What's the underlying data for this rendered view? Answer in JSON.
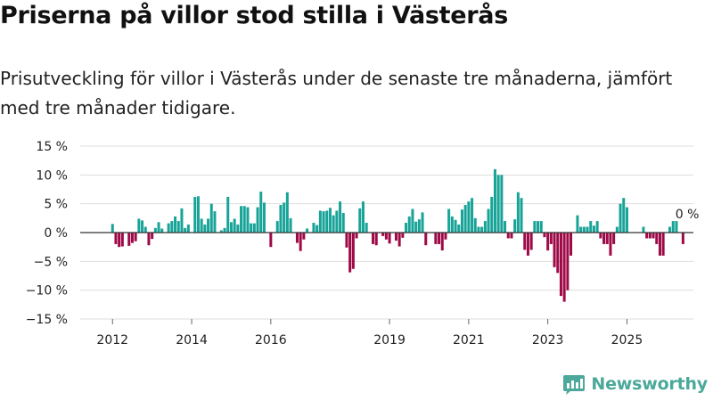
{
  "header": {
    "title": "Priserna på villor stod stilla i Västerås",
    "subtitle": "Prisutveckling för villor i Västerås under de senaste tre månaderna, jämfört med tre månader tidigare."
  },
  "brand": {
    "name": "Newsworthy",
    "icon": "bar-chart-logo-icon"
  },
  "colors": {
    "positive": "#17a398",
    "negative": "#9e0a47",
    "grid": "#dddddd",
    "zero_line": "#333333",
    "brand": "#4ba89a"
  },
  "chart_data": {
    "type": "bar",
    "title": "Priserna på villor stod stilla i Västerås",
    "xlabel": "",
    "ylabel": "",
    "ylim": [
      -15,
      15
    ],
    "yticks": [
      15,
      10,
      5,
      0,
      -5,
      -10,
      -15
    ],
    "ytick_labels": [
      "15 %",
      "10 %",
      "5 %",
      "0 %",
      "−5 %",
      "−10 %",
      "−15 %"
    ],
    "x_start_month": "2011-11",
    "xtick_labels": [
      {
        "label": "2012",
        "month": "2012-01"
      },
      {
        "label": "2014",
        "month": "2014-01"
      },
      {
        "label": "2016",
        "month": "2016-01"
      },
      {
        "label": "2019",
        "month": "2019-01"
      },
      {
        "label": "2021",
        "month": "2021-01"
      },
      {
        "label": "2023",
        "month": "2023-01"
      },
      {
        "label": "2025",
        "month": "2025-01"
      }
    ],
    "annotation": {
      "text": "0 %",
      "index": 174,
      "value": 0
    },
    "grid": true,
    "values": [
      0,
      0,
      1.5,
      -2,
      -2.5,
      -2.4,
      0,
      -2.3,
      -1.8,
      -1.5,
      2.4,
      2.1,
      1,
      -2.2,
      -1.1,
      0.8,
      1.8,
      0.7,
      0,
      1.6,
      2,
      2.8,
      2,
      4.2,
      0.8,
      1.4,
      0,
      6.2,
      6.3,
      2.4,
      1.4,
      2.4,
      5,
      3.7,
      0,
      0.4,
      0.8,
      6.2,
      1.8,
      2.4,
      1.4,
      4.6,
      4.6,
      4.4,
      1.6,
      1.6,
      4.4,
      7.1,
      5.2,
      0,
      -2.5,
      0,
      2,
      4.8,
      5.2,
      7,
      2.5,
      0,
      -1.8,
      -3.2,
      -1.2,
      0.7,
      0,
      1.7,
      1.3,
      3.8,
      3.7,
      3.8,
      4.3,
      3,
      3.8,
      5.4,
      3.4,
      -2.6,
      -6.9,
      -6.3,
      -1,
      4.2,
      5.4,
      1.7,
      0,
      -2,
      -2.2,
      0,
      -0.6,
      -1.2,
      -1.9,
      0,
      -1.4,
      -2.4,
      -0.9,
      1.7,
      2.8,
      4.1,
      1.9,
      2.3,
      3.5,
      -2.2,
      0,
      0,
      -2,
      -2,
      -3.1,
      -1.2,
      4.1,
      2.8,
      2.2,
      1.4,
      4,
      4.8,
      5.4,
      6,
      2.5,
      1,
      1,
      2,
      4.1,
      6.2,
      11,
      10,
      10,
      2,
      -1,
      -1,
      2.3,
      7,
      6,
      -3,
      -4,
      -3,
      2,
      2,
      2,
      -0.8,
      -3.1,
      -2,
      -6,
      -7,
      -11,
      -12,
      -10,
      -4,
      0,
      3,
      1,
      1,
      1,
      2,
      1.2,
      2,
      -1,
      -2,
      -2,
      -4,
      -2,
      1,
      5,
      6,
      4.4,
      0,
      0,
      0,
      0,
      1,
      -1,
      -1,
      -1,
      -2,
      -4,
      -4,
      0,
      1,
      2,
      2,
      0,
      -2,
      0,
      0,
      0,
      0,
      0,
      0,
      0,
      0,
      0,
      0,
      0,
      0
    ]
  }
}
